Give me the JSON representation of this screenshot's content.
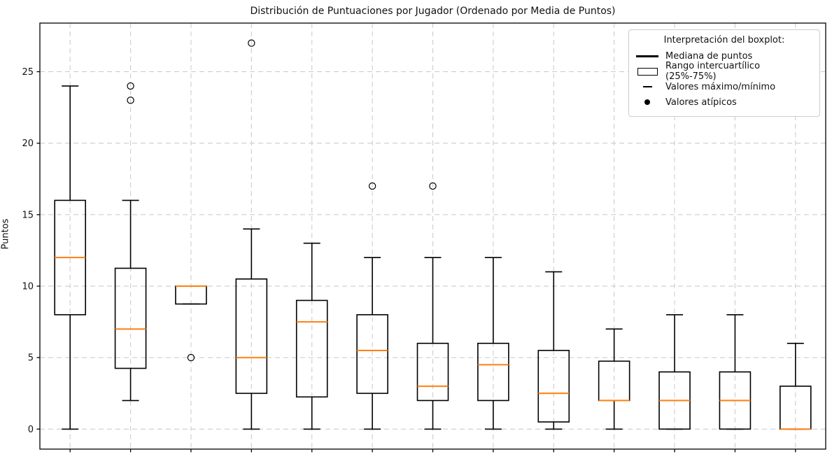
{
  "chart_data": {
    "type": "boxplot",
    "title": "Distribución de Puntuaciones por Jugador (Ordenado por Media de Puntos)",
    "xlabel": "",
    "ylabel": "Puntos",
    "y_ticks": [
      0,
      5,
      10,
      15,
      20,
      25
    ],
    "ylim": [
      -1.4,
      28.4
    ],
    "x_tick_labels_visible": false,
    "grid": {
      "visible": true,
      "style": "dashed",
      "axes": "both"
    },
    "colors": {
      "box_stroke": "#000000",
      "median": "#ff7f0e",
      "grid": "#cdcdcd",
      "background": "#ffffff",
      "text": "#111111"
    },
    "legend": {
      "title": "Interpretación del boxplot:",
      "position": "upper right",
      "items": [
        {
          "key": "median-line",
          "label": "Mediana de puntos"
        },
        {
          "key": "iqr-box",
          "label": "Rango intercuartílico (25%-75%)"
        },
        {
          "key": "whisker-line",
          "label": "Valores máximo/mínimo"
        },
        {
          "key": "outlier-dot",
          "label": "Valores atípicos"
        }
      ]
    },
    "series": [
      {
        "position": 1,
        "whisker_low": 0,
        "q1": 8,
        "median": 12,
        "q3": 16,
        "whisker_high": 24,
        "outliers": []
      },
      {
        "position": 2,
        "whisker_low": 2,
        "q1": 4.25,
        "median": 7,
        "q3": 11.25,
        "whisker_high": 16,
        "outliers": [
          23,
          24
        ]
      },
      {
        "position": 3,
        "whisker_low": 8.75,
        "q1": 8.75,
        "median": 10,
        "q3": 10,
        "whisker_high": 10,
        "outliers": [
          5
        ]
      },
      {
        "position": 4,
        "whisker_low": 0,
        "q1": 2.5,
        "median": 5,
        "q3": 10.5,
        "whisker_high": 14,
        "outliers": [
          27
        ]
      },
      {
        "position": 5,
        "whisker_low": 0,
        "q1": 2.25,
        "median": 7.5,
        "q3": 9,
        "whisker_high": 13,
        "outliers": []
      },
      {
        "position": 6,
        "whisker_low": 0,
        "q1": 2.5,
        "median": 5.5,
        "q3": 8,
        "whisker_high": 12,
        "outliers": [
          17
        ]
      },
      {
        "position": 7,
        "whisker_low": 0,
        "q1": 2,
        "median": 3,
        "q3": 6,
        "whisker_high": 12,
        "outliers": [
          17
        ]
      },
      {
        "position": 8,
        "whisker_low": 0,
        "q1": 2,
        "median": 4.5,
        "q3": 6,
        "whisker_high": 12,
        "outliers": []
      },
      {
        "position": 9,
        "whisker_low": 0,
        "q1": 0.5,
        "median": 2.5,
        "q3": 5.5,
        "whisker_high": 11,
        "outliers": []
      },
      {
        "position": 10,
        "whisker_low": 0,
        "q1": 2,
        "median": 2,
        "q3": 4.75,
        "whisker_high": 7,
        "outliers": []
      },
      {
        "position": 11,
        "whisker_low": 0,
        "q1": 0,
        "median": 2,
        "q3": 4,
        "whisker_high": 8,
        "outliers": []
      },
      {
        "position": 12,
        "whisker_low": 0,
        "q1": 0,
        "median": 2,
        "q3": 4,
        "whisker_high": 8,
        "outliers": []
      },
      {
        "position": 13,
        "whisker_low": 0,
        "q1": 0,
        "median": 0,
        "q3": 3,
        "whisker_high": 6,
        "outliers": []
      }
    ]
  }
}
